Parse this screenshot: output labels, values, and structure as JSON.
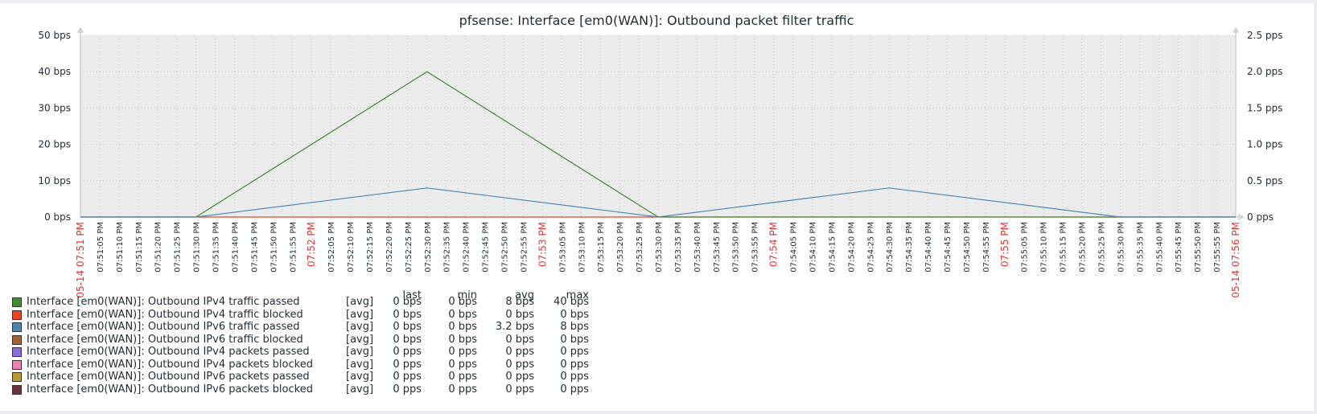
{
  "chart_data": {
    "type": "line",
    "title": "pfsense: Interface [em0(WAN)]: Outbound packet filter traffic",
    "y_left": {
      "unit": "bps",
      "ylim": [
        0,
        50
      ],
      "ticks": [
        "0 bps",
        "10 bps",
        "20 bps",
        "30 bps",
        "40 bps",
        "50 bps"
      ]
    },
    "y_right": {
      "unit": "pps",
      "ylim": [
        0,
        2.5
      ],
      "ticks": [
        "0 pps",
        "0.5 pps",
        "1.0 pps",
        "1.5 pps",
        "2.0 pps",
        "2.5 pps"
      ]
    },
    "x_start_label": "05-14 07:51 PM",
    "x_end_label": "05-14 07:56 PM",
    "x_ticks": [
      "07:51:05 PM",
      "07:51:10 PM",
      "07:51:15 PM",
      "07:51:20 PM",
      "07:51:25 PM",
      "07:51:30 PM",
      "07:51:35 PM",
      "07:51:40 PM",
      "07:51:45 PM",
      "07:51:50 PM",
      "07:51:55 PM",
      "07:52 PM",
      "07:52:05 PM",
      "07:52:10 PM",
      "07:52:15 PM",
      "07:52:20 PM",
      "07:52:25 PM",
      "07:52:30 PM",
      "07:52:35 PM",
      "07:52:40 PM",
      "07:52:45 PM",
      "07:52:50 PM",
      "07:52:55 PM",
      "07:53 PM",
      "07:53:05 PM",
      "07:53:10 PM",
      "07:53:15 PM",
      "07:53:20 PM",
      "07:53:25 PM",
      "07:53:30 PM",
      "07:53:35 PM",
      "07:53:40 PM",
      "07:53:45 PM",
      "07:53:50 PM",
      "07:53:55 PM",
      "07:54 PM",
      "07:54:05 PM",
      "07:54:10 PM",
      "07:54:15 PM",
      "07:54:20 PM",
      "07:54:25 PM",
      "07:54:30 PM",
      "07:54:35 PM",
      "07:54:40 PM",
      "07:54:45 PM",
      "07:54:50 PM",
      "07:54:55 PM",
      "07:55 PM",
      "07:55:05 PM",
      "07:55:10 PM",
      "07:55:15 PM",
      "07:55:20 PM",
      "07:55:25 PM",
      "07:55:30 PM",
      "07:55:35 PM",
      "07:55:40 PM",
      "07:55:45 PM",
      "07:55:50 PM",
      "07:55:55 PM"
    ],
    "x_range_seconds_label": "07:51:00 PM to 07:56:00 PM",
    "grid": true,
    "series": [
      {
        "name": "Interface [em0(WAN)]: Outbound IPv4 traffic passed",
        "color": "#3e8f2f",
        "axis": "left",
        "points": [
          [
            "07:51:00 PM",
            0
          ],
          [
            "07:51:30 PM",
            0
          ],
          [
            "07:52:30 PM",
            40
          ],
          [
            "07:53:30 PM",
            0
          ],
          [
            "07:56:00 PM",
            0
          ]
        ]
      },
      {
        "name": "Interface [em0(WAN)]: Outbound IPv6 traffic passed",
        "color": "#4a87b3",
        "axis": "left",
        "points": [
          [
            "07:51:00 PM",
            0
          ],
          [
            "07:51:30 PM",
            0
          ],
          [
            "07:52:30 PM",
            8
          ],
          [
            "07:53:30 PM",
            0
          ],
          [
            "07:54:30 PM",
            8
          ],
          [
            "07:55:30 PM",
            0
          ],
          [
            "07:56:00 PM",
            0
          ]
        ]
      },
      {
        "name": "Interface [em0(WAN)]: Outbound IPv4 traffic blocked",
        "color": "#f0421f",
        "axis": "left",
        "points": [
          [
            "07:51:00 PM",
            0
          ],
          [
            "07:56:00 PM",
            0
          ]
        ]
      }
    ]
  },
  "legend": {
    "headers": [
      "last",
      "min",
      "avg",
      "max"
    ],
    "rows": [
      {
        "color": "#3e8f2f",
        "name": "Interface [em0(WAN)]: Outbound IPv4 traffic passed",
        "tag": "[avg]",
        "last": "0 bps",
        "min": "0 bps",
        "avg": "8 bps",
        "max": "40 bps"
      },
      {
        "color": "#f0421f",
        "name": "Interface [em0(WAN)]: Outbound IPv4 traffic blocked",
        "tag": "[avg]",
        "last": "0 bps",
        "min": "0 bps",
        "avg": "0 bps",
        "max": "0 bps"
      },
      {
        "color": "#4a87b3",
        "name": "Interface [em0(WAN)]: Outbound IPv6 traffic passed",
        "tag": "[avg]",
        "last": "0 bps",
        "min": "0 bps",
        "avg": "3.2 bps",
        "max": "8 bps"
      },
      {
        "color": "#a8612d",
        "name": "Interface [em0(WAN)]: Outbound IPv6 traffic blocked",
        "tag": "[avg]",
        "last": "0 bps",
        "min": "0 bps",
        "avg": "0 bps",
        "max": "0 bps"
      },
      {
        "color": "#8a6ee0",
        "name": "Interface [em0(WAN)]: Outbound IPv4 packets passed",
        "tag": "[avg]",
        "last": "0 pps",
        "min": "0 pps",
        "avg": "0 pps",
        "max": "0 pps"
      },
      {
        "color": "#ee7fb5",
        "name": "Interface [em0(WAN)]: Outbound IPv4 packets blocked",
        "tag": "[avg]",
        "last": "0 pps",
        "min": "0 pps",
        "avg": "0 pps",
        "max": "0 pps"
      },
      {
        "color": "#b89a2d",
        "name": "Interface [em0(WAN)]: Outbound IPv6 packets passed",
        "tag": "[avg]",
        "last": "0 pps",
        "min": "0 pps",
        "avg": "0 pps",
        "max": "0 pps"
      },
      {
        "color": "#6b3340",
        "name": "Interface [em0(WAN)]: Outbound IPv6 packets blocked",
        "tag": "[avg]",
        "last": "0 pps",
        "min": "0 pps",
        "avg": "0 pps",
        "max": "0 pps"
      }
    ]
  }
}
